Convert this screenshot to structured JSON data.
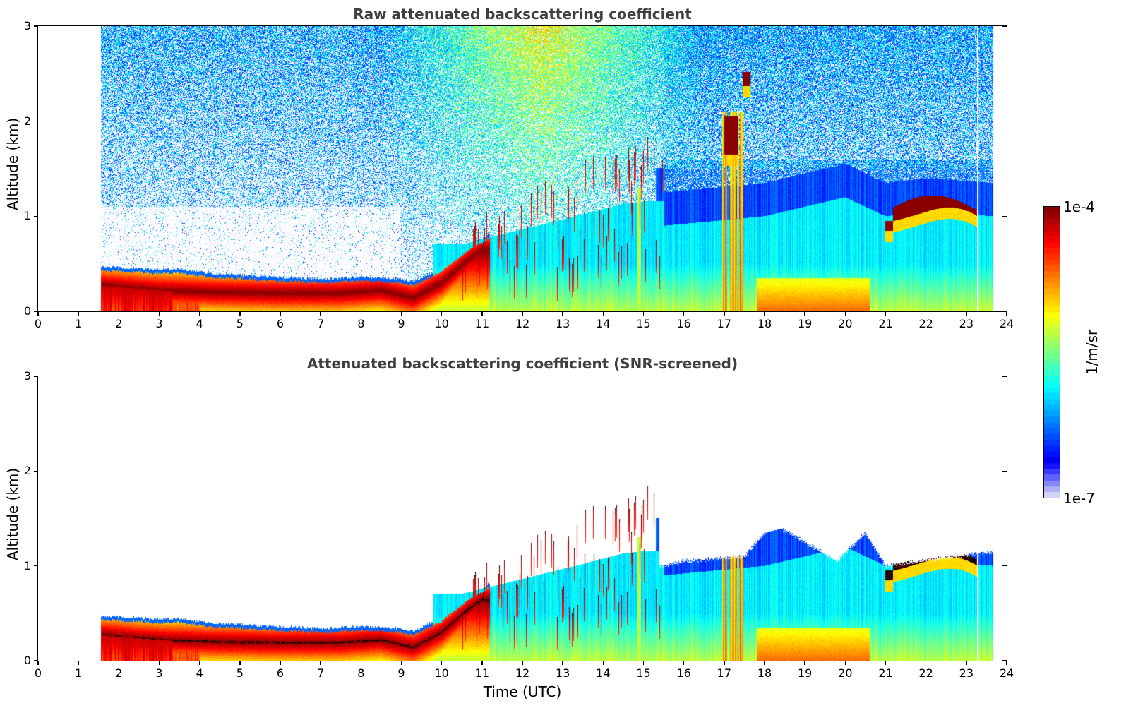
{
  "chart_data": [
    {
      "type": "heatmap",
      "title": "Raw attenuated backscattering coefficient",
      "xlabel": "",
      "ylabel": "Altitude (km)",
      "xlim": [
        0,
        24
      ],
      "ylim": [
        0,
        3
      ],
      "xticks": [
        "0",
        "1",
        "2",
        "3",
        "4",
        "5",
        "6",
        "7",
        "8",
        "9",
        "10",
        "11",
        "12",
        "13",
        "14",
        "15",
        "16",
        "17",
        "18",
        "19",
        "20",
        "21",
        "22",
        "23",
        "24"
      ],
      "yticks": [
        "0",
        "1",
        "2",
        "3"
      ],
      "grid": false,
      "data_time_range_h": [
        1.55,
        23.67
      ],
      "missing_profile_time_h": 23.28,
      "screened": false,
      "features": {
        "residual_layer_top_km": [
          [
            1.55,
            0.43
          ],
          [
            3.0,
            0.4
          ],
          [
            3.5,
            0.4
          ],
          [
            4.0,
            0.37
          ],
          [
            5.5,
            0.33
          ],
          [
            7.0,
            0.3
          ],
          [
            8.0,
            0.32
          ],
          [
            9.0,
            0.3
          ],
          [
            9.3,
            0.27
          ],
          [
            10.0,
            0.42
          ],
          [
            10.6,
            0.62
          ],
          [
            11.5,
            0.85
          ]
        ],
        "strong_layer_center_km": [
          [
            1.55,
            0.27
          ],
          [
            3.0,
            0.22
          ],
          [
            4.5,
            0.2
          ],
          [
            6.0,
            0.19
          ],
          [
            7.5,
            0.19
          ],
          [
            8.5,
            0.22
          ],
          [
            9.3,
            0.14
          ],
          [
            10.0,
            0.3
          ],
          [
            10.6,
            0.52
          ],
          [
            11.0,
            0.65
          ]
        ],
        "convective_plumes_time_range_h": [
          10.5,
          15.5
        ],
        "convective_plume_max_km": [
          [
            10.5,
            0.9
          ],
          [
            12.0,
            1.25
          ],
          [
            13.5,
            1.6
          ],
          [
            14.5,
            1.85
          ],
          [
            15.0,
            1.9
          ]
        ],
        "cloud_patches": [
          {
            "t": [
              17.45,
              17.65
            ],
            "z": [
              2.37,
              2.52
            ],
            "log10_beta": -4.0
          },
          {
            "t": [
              17.0,
              17.35
            ],
            "z": [
              1.65,
              2.05
            ],
            "log10_beta": -4.0
          },
          {
            "t": [
              21.0,
              23.3
            ],
            "z": [
              0.85,
              1.22
            ],
            "log10_beta": -4.0
          }
        ],
        "aerosol_layer_top_km": [
          [
            15.5,
            0.9
          ],
          [
            18.0,
            1.0
          ],
          [
            20.0,
            1.2
          ],
          [
            21.0,
            1.0
          ],
          [
            22.0,
            1.05
          ],
          [
            23.67,
            1.0
          ]
        ],
        "noise_peak_time_h": 12.5
      }
    },
    {
      "type": "heatmap",
      "title": "Attenuated backscattering coefficient (SNR-screened)",
      "xlabel": "Time (UTC)",
      "ylabel": "Altitude (km)",
      "xlim": [
        0,
        24
      ],
      "ylim": [
        0,
        3
      ],
      "xticks": [
        "0",
        "1",
        "2",
        "3",
        "4",
        "5",
        "6",
        "7",
        "8",
        "9",
        "10",
        "11",
        "12",
        "13",
        "14",
        "15",
        "16",
        "17",
        "18",
        "19",
        "20",
        "21",
        "22",
        "23",
        "24"
      ],
      "yticks": [
        "0",
        "1",
        "2",
        "3"
      ],
      "grid": false,
      "data_time_range_h": [
        1.55,
        23.67
      ],
      "missing_profile_time_h": 23.28,
      "screened": true,
      "overflow_color": "#000000",
      "screened_top_km": [
        [
          15.5,
          1.0
        ],
        [
          16.0,
          1.05
        ],
        [
          17.5,
          1.1
        ],
        [
          18.2,
          1.45
        ],
        [
          19.0,
          1.25
        ],
        [
          19.8,
          1.05
        ],
        [
          20.5,
          1.35
        ],
        [
          21.0,
          1.0
        ],
        [
          23.67,
          1.15
        ]
      ]
    }
  ],
  "colorbar": {
    "label": "1/m/sr",
    "max_label": "1e-4",
    "min_label": "1e-7",
    "scale": "log",
    "range": [
      1e-07,
      0.0001
    ],
    "colormap": "jet (discrete, low end faded to white)",
    "levels": 50
  }
}
